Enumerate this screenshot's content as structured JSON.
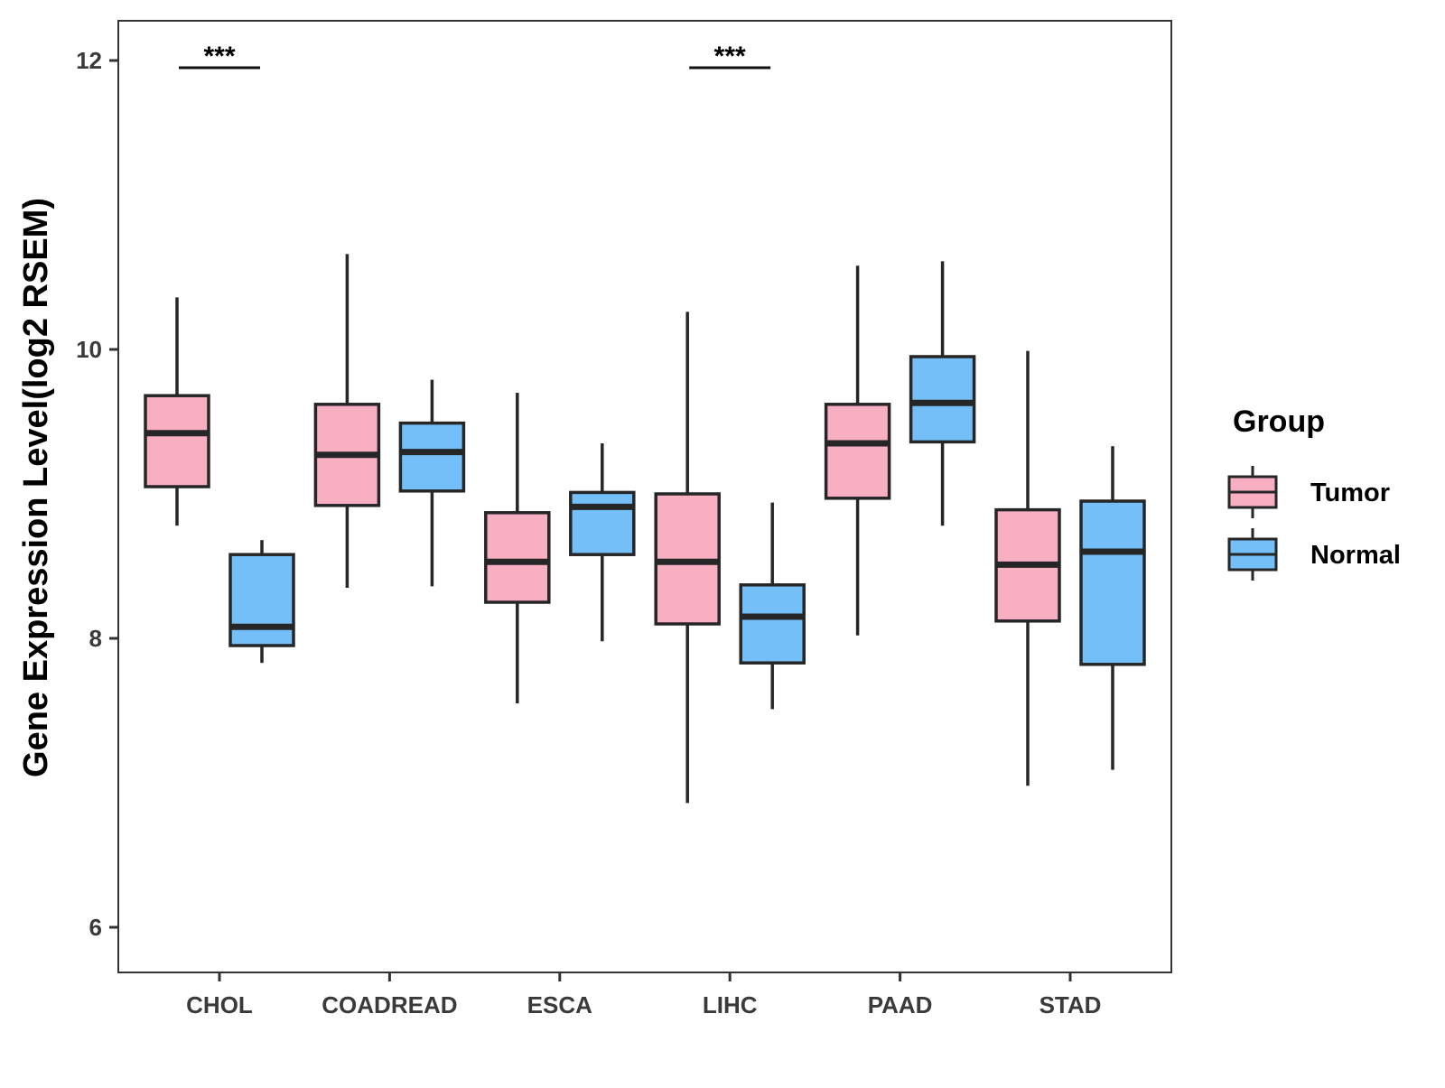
{
  "chart_data": {
    "type": "boxplot",
    "title": "",
    "xlabel": "",
    "ylabel": "Gene Expression Level(log2 RSEM)",
    "ylim": [
      5.7,
      12.3
    ],
    "yticks": [
      6,
      8,
      10,
      12
    ],
    "grid": false,
    "categories": [
      "CHOL",
      "COADREAD",
      "ESCA",
      "LIHC",
      "PAAD",
      "STAD"
    ],
    "legend": {
      "title": "Group",
      "position": "right",
      "entries": [
        {
          "name": "Tumor",
          "color": "#f9afc2"
        },
        {
          "name": "Normal",
          "color": "#74bff7"
        }
      ]
    },
    "series": [
      {
        "name": "Tumor",
        "color": "#f9afc2",
        "boxes": [
          {
            "category": "CHOL",
            "min": 8.78,
            "q1": 9.05,
            "median": 9.42,
            "q3": 9.68,
            "max": 10.36
          },
          {
            "category": "COADREAD",
            "min": 8.35,
            "q1": 8.92,
            "median": 9.27,
            "q3": 9.62,
            "max": 10.66
          },
          {
            "category": "ESCA",
            "min": 7.55,
            "q1": 8.25,
            "median": 8.53,
            "q3": 8.87,
            "max": 9.7
          },
          {
            "category": "LIHC",
            "min": 6.86,
            "q1": 8.1,
            "median": 8.53,
            "q3": 9.0,
            "max": 10.26
          },
          {
            "category": "PAAD",
            "min": 8.02,
            "q1": 8.97,
            "median": 9.35,
            "q3": 9.62,
            "max": 10.58
          },
          {
            "category": "STAD",
            "min": 6.98,
            "q1": 8.12,
            "median": 8.51,
            "q3": 8.89,
            "max": 9.99
          }
        ]
      },
      {
        "name": "Normal",
        "color": "#74bff7",
        "boxes": [
          {
            "category": "CHOL",
            "min": 7.83,
            "q1": 7.95,
            "median": 8.08,
            "q3": 8.58,
            "max": 8.68
          },
          {
            "category": "COADREAD",
            "min": 8.36,
            "q1": 9.02,
            "median": 9.29,
            "q3": 9.49,
            "max": 9.79
          },
          {
            "category": "ESCA",
            "min": 7.98,
            "q1": 8.58,
            "median": 8.91,
            "q3": 9.01,
            "max": 9.35
          },
          {
            "category": "LIHC",
            "min": 7.51,
            "q1": 7.83,
            "median": 8.15,
            "q3": 8.37,
            "max": 8.94
          },
          {
            "category": "PAAD",
            "min": 8.78,
            "q1": 9.36,
            "median": 9.63,
            "q3": 9.95,
            "max": 10.61
          },
          {
            "category": "STAD",
            "min": 7.09,
            "q1": 7.82,
            "median": 8.6,
            "q3": 8.95,
            "max": 9.33
          }
        ]
      }
    ],
    "annotations": [
      {
        "category": "CHOL",
        "text": "***",
        "y": 11.95
      },
      {
        "category": "LIHC",
        "text": "***",
        "y": 11.95
      }
    ]
  }
}
